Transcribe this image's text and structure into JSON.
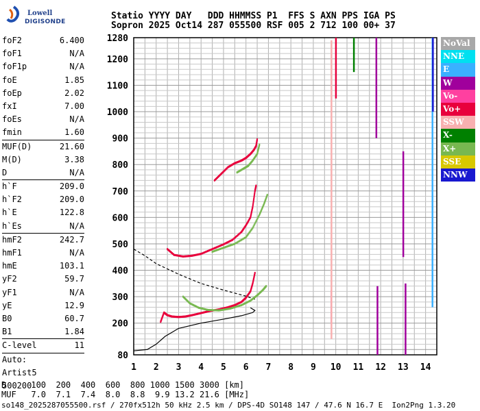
{
  "logo": {
    "brand_top": "Lowell",
    "brand_bottom": "DIGISONDE"
  },
  "header": {
    "line1": "Statio YYYY DAY   DDD HHMMSS P1  FFS S AXN PPS IGA PS",
    "line2": "Sopron 2025 Oct14 287 055500 RSF 005 2 712 100 00+ 37"
  },
  "params": [
    {
      "label": "foF2",
      "value": "6.400"
    },
    {
      "label": "foF1",
      "value": "N/A"
    },
    {
      "label": "foF1p",
      "value": "N/A"
    },
    {
      "label": "foE",
      "value": "1.85"
    },
    {
      "label": "foEp",
      "value": "2.02"
    },
    {
      "label": "fxI",
      "value": "7.00"
    },
    {
      "label": "foEs",
      "value": "N/A"
    },
    {
      "label": "fmin",
      "value": "1.60"
    },
    {
      "sep": true
    },
    {
      "label": "MUF(D)",
      "value": "21.60"
    },
    {
      "label": "M(D)",
      "value": "3.38"
    },
    {
      "label": "D",
      "value": "N/A"
    },
    {
      "sep": true
    },
    {
      "label": "h`F",
      "value": "209.0"
    },
    {
      "label": "h`F2",
      "value": "209.0"
    },
    {
      "label": "h`E",
      "value": "122.8"
    },
    {
      "label": "h`Es",
      "value": "N/A"
    },
    {
      "sep": true
    },
    {
      "label": "hmF2",
      "value": "242.7"
    },
    {
      "label": "hmF1",
      "value": "N/A"
    },
    {
      "label": "hmE",
      "value": "103.1"
    },
    {
      "label": "yF2",
      "value": "59.7"
    },
    {
      "label": "yF1",
      "value": "N/A"
    },
    {
      "label": "yE",
      "value": "12.9"
    },
    {
      "label": "B0",
      "value": "60.7"
    },
    {
      "label": "B1",
      "value": "1.84"
    },
    {
      "sep": true
    },
    {
      "label": "C-level",
      "value": "11"
    },
    {
      "sep": true
    }
  ],
  "auto": [
    "Auto:",
    "Artist5",
    "500200"
  ],
  "legend": [
    {
      "label": "NoVal",
      "color": "#a8a8a8"
    },
    {
      "label": "NNE",
      "color": "#00e0f0"
    },
    {
      "label": "E",
      "color": "#3ab0ff"
    },
    {
      "label": "W",
      "color": "#a0009c"
    },
    {
      "label": "Vo-",
      "color": "#ff40a0"
    },
    {
      "label": "Vo+",
      "color": "#e8003c"
    },
    {
      "label": "SSW",
      "color": "#f8b0b0"
    },
    {
      "label": "X-",
      "color": "#008000"
    },
    {
      "label": "X+",
      "color": "#78b850"
    },
    {
      "label": "SSE",
      "color": "#d8c800"
    },
    {
      "label": "NNW",
      "color": "#1818d0"
    }
  ],
  "footer": {
    "line1": "D     100  200  400  600  800 1000 1500 3000 [km]",
    "line2": "MUF   7.0  7.1  7.4  8.0  8.8  9.9 13.2 21.6 [MHz]",
    "line3": "so148_2025287055500.rsf / 270fx512h 50 kHz 2.5 km / DPS-4D SO148 147 / 47.6 N 16.7 E  Ion2Png 1.3.20"
  },
  "chart_data": {
    "type": "scatter",
    "xlim": [
      1,
      14.5
    ],
    "ylim": [
      80,
      1280
    ],
    "xticks": [
      1,
      2,
      3,
      4,
      5,
      6,
      7,
      8,
      9,
      10,
      11,
      12,
      13,
      14
    ],
    "yticks": [
      80,
      200,
      300,
      400,
      500,
      600,
      700,
      800,
      900,
      1000,
      1100,
      1200,
      1280
    ],
    "grid": true,
    "series": [
      {
        "name": "Vo+",
        "color": "#e8003c",
        "x": [
          2.2,
          2.35,
          2.5,
          2.7,
          3.0,
          3.3,
          3.6,
          4.0,
          4.4,
          4.8,
          5.2,
          5.5,
          5.8,
          6.0,
          6.2,
          6.3,
          6.4
        ],
        "y": [
          205,
          240,
          230,
          225,
          223,
          225,
          230,
          238,
          246,
          252,
          260,
          268,
          280,
          296,
          320,
          350,
          390
        ]
      },
      {
        "name": "Vo+",
        "color": "#e8003c",
        "x": [
          2.5,
          2.8,
          3.2,
          3.6,
          4.0,
          4.5,
          5.0,
          5.4,
          5.8,
          6.0,
          6.2,
          6.3,
          6.4,
          6.45
        ],
        "y": [
          480,
          458,
          452,
          455,
          462,
          480,
          498,
          515,
          545,
          570,
          600,
          640,
          700,
          720
        ]
      },
      {
        "name": "Vo+",
        "color": "#e8003c",
        "x": [
          4.6,
          4.9,
          5.2,
          5.5,
          5.8,
          6.0,
          6.2,
          6.35,
          6.45,
          6.5
        ],
        "y": [
          740,
          765,
          790,
          805,
          815,
          825,
          840,
          855,
          870,
          895
        ]
      },
      {
        "name": "X+",
        "color": "#78b850",
        "x": [
          3.2,
          3.5,
          3.9,
          4.3,
          4.8,
          5.3,
          5.8,
          6.2,
          6.5,
          6.75,
          6.9
        ],
        "y": [
          300,
          275,
          258,
          250,
          248,
          255,
          268,
          285,
          305,
          325,
          340
        ]
      },
      {
        "name": "X+",
        "color": "#78b850",
        "x": [
          4.5,
          5.0,
          5.5,
          6.0,
          6.3,
          6.6,
          6.8,
          6.95
        ],
        "y": [
          470,
          485,
          500,
          525,
          560,
          610,
          650,
          685
        ]
      },
      {
        "name": "X+",
        "color": "#78b850",
        "x": [
          5.6,
          5.9,
          6.1,
          6.3,
          6.5,
          6.6
        ],
        "y": [
          770,
          785,
          795,
          815,
          840,
          875
        ]
      },
      {
        "name": "Vo-",
        "color": "#ff40a0",
        "x": [
          9.8,
          9.8,
          9.8,
          9.8,
          9.8
        ],
        "y": [
          200,
          240,
          270,
          300,
          320
        ]
      }
    ]
  }
}
